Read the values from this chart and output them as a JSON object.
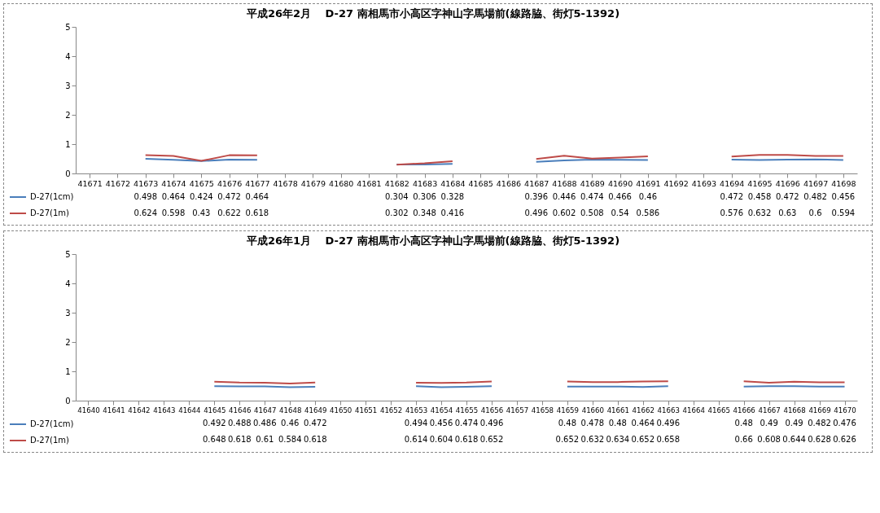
{
  "chart_data": [
    {
      "type": "line",
      "title": "平成26年2月　 D-27 南相馬市小高区字神山字馬場前(線路脇、街灯5-1392)",
      "categories": [
        "41671",
        "41672",
        "41673",
        "41674",
        "41675",
        "41676",
        "41677",
        "41678",
        "41679",
        "41680",
        "41681",
        "41682",
        "41683",
        "41684",
        "41685",
        "41686",
        "41687",
        "41688",
        "41689",
        "41690",
        "41691",
        "41692",
        "41693",
        "41694",
        "41695",
        "41696",
        "41697",
        "41698"
      ],
      "series": [
        {
          "name": "D-27(1cm)",
          "color": "#4a7ebb",
          "values": [
            null,
            null,
            0.498,
            0.464,
            0.424,
            0.472,
            0.464,
            null,
            null,
            null,
            null,
            0.304,
            0.306,
            0.328,
            null,
            null,
            0.396,
            0.446,
            0.474,
            0.466,
            0.46,
            null,
            null,
            0.472,
            0.458,
            0.472,
            0.482,
            0.456
          ]
        },
        {
          "name": "D-27(1m)",
          "color": "#be4b48",
          "values": [
            null,
            null,
            0.624,
            0.598,
            0.43,
            0.622,
            0.618,
            null,
            null,
            null,
            null,
            0.302,
            0.348,
            0.416,
            null,
            null,
            0.496,
            0.602,
            0.508,
            0.54,
            0.586,
            null,
            null,
            0.576,
            0.632,
            0.63,
            0.6,
            0.594
          ]
        }
      ],
      "ylim": [
        0,
        5
      ],
      "yticks": [
        0,
        1,
        2,
        3,
        4,
        5
      ],
      "grid": false,
      "legend": "bottom left",
      "data_labels": true
    },
    {
      "type": "line",
      "title": "平成26年1月　 D-27 南相馬市小高区字神山字馬場前(線路脇、街灯5-1392)",
      "categories": [
        "41640",
        "41641",
        "41642",
        "41643",
        "41644",
        "41645",
        "41646",
        "41647",
        "41648",
        "41649",
        "41650",
        "41651",
        "41652",
        "41653",
        "41654",
        "41655",
        "41656",
        "41657",
        "41658",
        "41659",
        "41660",
        "41661",
        "41662",
        "41663",
        "41664",
        "41665",
        "41666",
        "41667",
        "41668",
        "41669",
        "41670"
      ],
      "series": [
        {
          "name": "D-27(1cm)",
          "color": "#4a7ebb",
          "values": [
            null,
            null,
            null,
            null,
            null,
            0.492,
            0.488,
            0.486,
            0.46,
            0.472,
            null,
            null,
            null,
            0.494,
            0.456,
            0.474,
            0.496,
            null,
            null,
            0.48,
            0.478,
            0.48,
            0.464,
            0.496,
            null,
            null,
            0.48,
            0.49,
            0.49,
            0.482,
            0.476
          ]
        },
        {
          "name": "D-27(1m)",
          "color": "#be4b48",
          "values": [
            null,
            null,
            null,
            null,
            null,
            0.648,
            0.618,
            0.61,
            0.584,
            0.618,
            null,
            null,
            null,
            0.614,
            0.604,
            0.618,
            0.652,
            null,
            null,
            0.652,
            0.632,
            0.634,
            0.652,
            0.658,
            null,
            null,
            0.66,
            0.608,
            0.644,
            0.628,
            0.626
          ]
        }
      ],
      "ylim": [
        0,
        5
      ],
      "yticks": [
        0,
        1,
        2,
        3,
        4,
        5
      ],
      "grid": false,
      "legend": "bottom left",
      "data_labels": true
    }
  ]
}
